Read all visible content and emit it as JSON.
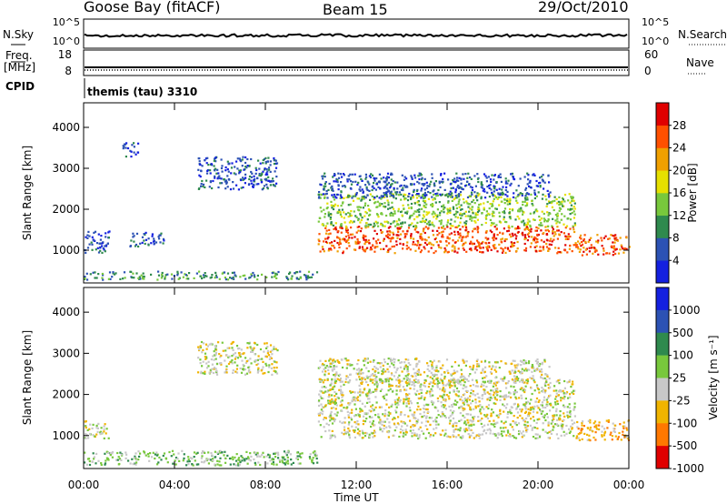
{
  "header": {
    "station": "Goose Bay (fitACF)",
    "beam": "Beam 15",
    "date": "29/Oct/2010"
  },
  "colors": {
    "power": [
      "#1420e0",
      "#2c52b4",
      "#2f8a4e",
      "#78c83c",
      "#e6e000",
      "#f0a000",
      "#ff5000",
      "#e00000"
    ],
    "velocity": [
      "#1420e0",
      "#2c52b4",
      "#2f8a4e",
      "#78c83c",
      "#c8c8c8",
      "#f0b400",
      "#ff7800",
      "#e00000"
    ]
  },
  "nsky_panel": {
    "left_label": "N.Sky",
    "left_ticks": [
      "10^5",
      "10^0"
    ],
    "right_label": "N.Search",
    "right_ticks": [
      "10^5",
      "10^0"
    ]
  },
  "freq_panel": {
    "left_label_1": "Freq.",
    "left_label_2": "[MHz]",
    "left_ticks": [
      "18",
      "8"
    ],
    "right_label": "Nave",
    "right_ticks": [
      "60",
      "0"
    ]
  },
  "cpid_panel": {
    "label": "CPID",
    "program": "themis (tau) 3310"
  },
  "chart_data": [
    {
      "type": "heatmap",
      "quantity": "power",
      "ylabel": "Slant Range [km]",
      "xlabel": "",
      "yticks": [
        1000,
        2000,
        3000,
        4000
      ],
      "ylim": [
        200,
        4600
      ],
      "xlim_hours": [
        0,
        24
      ],
      "colorbar_label": "Power [dB]",
      "colorbar_ticks": [
        "4",
        "8",
        "12",
        "16",
        "20",
        "24",
        "28"
      ],
      "colorbar_range": [
        0,
        32
      ],
      "echo_regions": [
        {
          "t": [
            0.0,
            10.3
          ],
          "range": [
            300,
            500
          ],
          "level": 2
        },
        {
          "t": [
            0.0,
            1.1
          ],
          "range": [
            950,
            1500
          ],
          "level": 1
        },
        {
          "t": [
            2.0,
            3.5
          ],
          "range": [
            1100,
            1450
          ],
          "level": 1
        },
        {
          "t": [
            1.7,
            2.4
          ],
          "range": [
            3300,
            3650
          ],
          "level": 1
        },
        {
          "t": [
            5.0,
            8.5
          ],
          "range": [
            2500,
            3300
          ],
          "level": 1
        },
        {
          "t": [
            10.3,
            21.6
          ],
          "range": [
            950,
            1600
          ],
          "level": 6
        },
        {
          "t": [
            10.3,
            21.6
          ],
          "range": [
            1600,
            2400
          ],
          "level": 3
        },
        {
          "t": [
            21.6,
            24.0
          ],
          "range": [
            900,
            1400
          ],
          "level": 6
        },
        {
          "t": [
            10.3,
            20.5
          ],
          "range": [
            2300,
            2900
          ],
          "level": 1
        }
      ]
    },
    {
      "type": "heatmap",
      "quantity": "velocity",
      "ylabel": "Slant Range [km]",
      "xlabel": "Time UT",
      "xticks": [
        "00:00",
        "04:00",
        "08:00",
        "12:00",
        "16:00",
        "20:00",
        "00:00"
      ],
      "yticks": [
        1000,
        2000,
        3000,
        4000
      ],
      "ylim": [
        200,
        4600
      ],
      "xlim_hours": [
        0,
        24
      ],
      "colorbar_label": "Velocity [m s⁻¹]",
      "colorbar_ticks": [
        "1000",
        "500",
        "100",
        "25",
        "-25",
        "-100",
        "-500",
        "-1000"
      ],
      "echo_regions": [
        {
          "t": [
            0.0,
            10.3
          ],
          "range": [
            300,
            650
          ],
          "level": 3
        },
        {
          "t": [
            0.0,
            1.1
          ],
          "range": [
            950,
            1400
          ],
          "level": 4
        },
        {
          "t": [
            5.0,
            8.5
          ],
          "range": [
            2500,
            3300
          ],
          "level": 4
        },
        {
          "t": [
            10.3,
            21.6
          ],
          "range": [
            950,
            2400
          ],
          "level": 4
        },
        {
          "t": [
            21.6,
            24.0
          ],
          "range": [
            900,
            1400
          ],
          "level": 5
        },
        {
          "t": [
            10.3,
            20.5
          ],
          "range": [
            2300,
            2900
          ],
          "level": 4
        }
      ]
    }
  ]
}
